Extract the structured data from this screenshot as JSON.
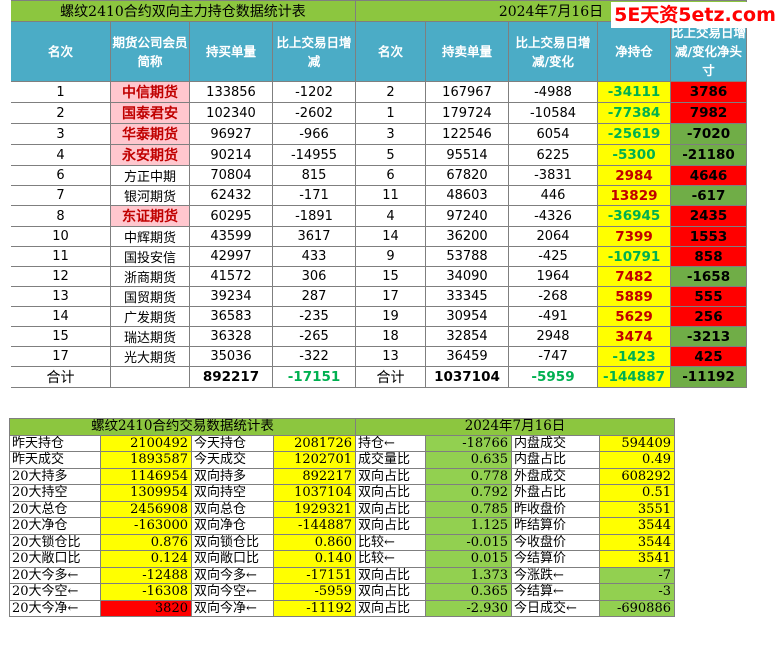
{
  "watermark": "5E天资5etz.com",
  "position_table": {
    "title_left": "螺纹2410合约双向主力持仓数据统计表",
    "title_right": "2024年7月16日",
    "headers": [
      "名次",
      "期货公司会员简称",
      "持买单量",
      "比上交易日增减",
      "名次",
      "持卖单量",
      "比上交易日增减/变化",
      "净持仓",
      "比上交易日增减/变化净头寸"
    ],
    "rows": [
      {
        "rank_buy": "1",
        "member": "中信期货",
        "buy": "133856",
        "buy_chg": "-1202",
        "rank_sell": "2",
        "sell": "167967",
        "sell_chg": "-4988",
        "net": "-34111",
        "net_chg": "3786"
      },
      {
        "rank_buy": "2",
        "member": "国泰君安",
        "buy": "102340",
        "buy_chg": "-2602",
        "rank_sell": "1",
        "sell": "179724",
        "sell_chg": "-10584",
        "net": "-77384",
        "net_chg": "7982"
      },
      {
        "rank_buy": "3",
        "member": "华泰期货",
        "buy": "96927",
        "buy_chg": "-966",
        "rank_sell": "3",
        "sell": "122546",
        "sell_chg": "6054",
        "net": "-25619",
        "net_chg": "-7020"
      },
      {
        "rank_buy": "4",
        "member": "永安期货",
        "buy": "90214",
        "buy_chg": "-14955",
        "rank_sell": "5",
        "sell": "95514",
        "sell_chg": "6225",
        "net": "-5300",
        "net_chg": "-21180"
      },
      {
        "rank_buy": "6",
        "member": "方正中期",
        "buy": "70804",
        "buy_chg": "815",
        "rank_sell": "6",
        "sell": "67820",
        "sell_chg": "-3831",
        "net": "2984",
        "net_chg": "4646"
      },
      {
        "rank_buy": "7",
        "member": "银河期货",
        "buy": "62432",
        "buy_chg": "-171",
        "rank_sell": "11",
        "sell": "48603",
        "sell_chg": "446",
        "net": "13829",
        "net_chg": "-617"
      },
      {
        "rank_buy": "8",
        "member": "东证期货",
        "buy": "60295",
        "buy_chg": "-1891",
        "rank_sell": "4",
        "sell": "97240",
        "sell_chg": "-4326",
        "net": "-36945",
        "net_chg": "2435"
      },
      {
        "rank_buy": "10",
        "member": "中辉期货",
        "buy": "43599",
        "buy_chg": "3617",
        "rank_sell": "14",
        "sell": "36200",
        "sell_chg": "2064",
        "net": "7399",
        "net_chg": "1553"
      },
      {
        "rank_buy": "11",
        "member": "国投安信",
        "buy": "42997",
        "buy_chg": "433",
        "rank_sell": "9",
        "sell": "53788",
        "sell_chg": "-425",
        "net": "-10791",
        "net_chg": "858"
      },
      {
        "rank_buy": "12",
        "member": "浙商期货",
        "buy": "41572",
        "buy_chg": "306",
        "rank_sell": "15",
        "sell": "34090",
        "sell_chg": "1964",
        "net": "7482",
        "net_chg": "-1658"
      },
      {
        "rank_buy": "13",
        "member": "国贸期货",
        "buy": "39234",
        "buy_chg": "287",
        "rank_sell": "17",
        "sell": "33345",
        "sell_chg": "-268",
        "net": "5889",
        "net_chg": "555"
      },
      {
        "rank_buy": "14",
        "member": "广发期货",
        "buy": "36583",
        "buy_chg": "-235",
        "rank_sell": "19",
        "sell": "30954",
        "sell_chg": "-491",
        "net": "5629",
        "net_chg": "256"
      },
      {
        "rank_buy": "15",
        "member": "瑞达期货",
        "buy": "36328",
        "buy_chg": "-265",
        "rank_sell": "18",
        "sell": "32854",
        "sell_chg": "2948",
        "net": "3474",
        "net_chg": "-3213"
      },
      {
        "rank_buy": "17",
        "member": "光大期货",
        "buy": "35036",
        "buy_chg": "-322",
        "rank_sell": "13",
        "sell": "36459",
        "sell_chg": "-747",
        "net": "-1423",
        "net_chg": "425"
      }
    ],
    "highlighted_members": [
      "中信期货",
      "国泰君安",
      "华泰期货",
      "永安期货",
      "东证期货"
    ],
    "total": {
      "label": "合计",
      "buy": "892217",
      "buy_chg": "-17151",
      "label2": "合计",
      "sell": "1037104",
      "sell_chg": "-5959",
      "net": "-144887",
      "net_chg": "-11192"
    }
  },
  "trade_table": {
    "title_left": "螺纹2410合约交易数据统计表",
    "title_right": "2024年7月16日",
    "rows": [
      {
        "l1": "昨天持仓",
        "v1": "2100492",
        "l2": "今天持仓",
        "v2": "2081726",
        "l3": "持仓←",
        "v3": "-18766",
        "l4": "内盘成交",
        "v4": "594409"
      },
      {
        "l1": "昨天成交",
        "v1": "1893587",
        "l2": "今天成交",
        "v2": "1202701",
        "l3": "成交量比",
        "v3": "0.635",
        "l4": "内盘占比",
        "v4": "0.49"
      },
      {
        "l1": "20大持多",
        "v1": "1146954",
        "l2": "双向持多",
        "v2": "892217",
        "l3": "双向占比",
        "v3": "0.778",
        "l4": "外盘成交",
        "v4": "608292"
      },
      {
        "l1": "20大持空",
        "v1": "1309954",
        "l2": "双向持空",
        "v2": "1037104",
        "l3": "双向占比",
        "v3": "0.792",
        "l4": "外盘占比",
        "v4": "0.51"
      },
      {
        "l1": "20大总仓",
        "v1": "2456908",
        "l2": "双向总仓",
        "v2": "1929321",
        "l3": "双向占比",
        "v3": "0.785",
        "l4": "昨收盘价",
        "v4": "3551"
      },
      {
        "l1": "20大净仓",
        "v1": "-163000",
        "l2": "双向净仓",
        "v2": "-144887",
        "l3": "双向占比",
        "v3": "1.125",
        "l4": "昨结算价",
        "v4": "3544"
      },
      {
        "l1": "20大锁仓比",
        "v1": "0.876",
        "l2": "双向锁仓比",
        "v2": "0.860",
        "l3": "比较←",
        "v3": "-0.015",
        "l4": "今收盘价",
        "v4": "3544"
      },
      {
        "l1": "20大敞口比",
        "v1": "0.124",
        "l2": "双向敞口比",
        "v2": "0.140",
        "l3": "比较←",
        "v3": "0.015",
        "l4": "今结算价",
        "v4": "3541"
      },
      {
        "l1": "20大今多←",
        "v1": "-12488",
        "l2": "双向今多←",
        "v2": "-17151",
        "l3": "双向占比",
        "v3": "1.373",
        "l4": "今涨跌←",
        "v4": "-7"
      },
      {
        "l1": "20大今空←",
        "v1": "-16308",
        "l2": "双向今空←",
        "v2": "-5959",
        "l3": "双向占比",
        "v3": "0.365",
        "l4": "今结算←",
        "v4": "-3"
      },
      {
        "l1": "20大今净←",
        "v1": "3820",
        "l2": "双向今净←",
        "v2": "-11192",
        "l3": "双向占比",
        "v3": "-2.930",
        "l4": "今日成交←",
        "v4": "-690886"
      }
    ]
  },
  "colors": {
    "title_green": "#8cc63f",
    "header_teal": "#4bacc6",
    "yellow": "#ffff00",
    "red": "#ff0000",
    "green": "#70ad47",
    "pink": "#ffc7ce",
    "dark_red_text": "#c00000",
    "green_text": "#00b050"
  }
}
